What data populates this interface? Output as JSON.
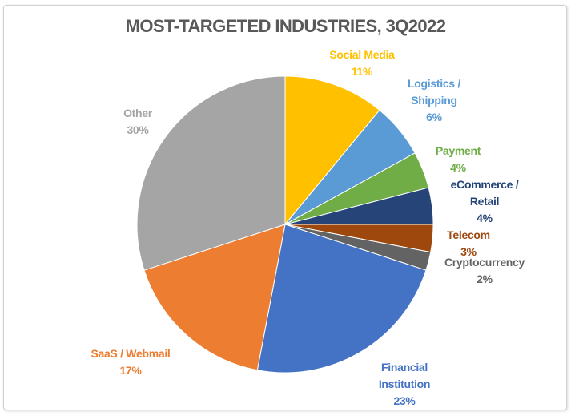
{
  "chart_data": {
    "type": "pie",
    "title": "MOST-TARGETED INDUSTRIES, 3Q2022",
    "start": "top, clockwise",
    "slices": [
      {
        "name": "Social Media",
        "value": 11,
        "label": "11%",
        "color": "#FFC000"
      },
      {
        "name": "Logistics / Shipping",
        "value": 6,
        "label": "6%",
        "color": "#5B9BD5"
      },
      {
        "name": "Payment",
        "value": 4,
        "label": "4%",
        "color": "#70AD47"
      },
      {
        "name": "eCommerce / Retail",
        "value": 4,
        "label": "4%",
        "color": "#264478"
      },
      {
        "name": "Telecom",
        "value": 3,
        "label": "3%",
        "color": "#9E480E"
      },
      {
        "name": "Cryptocurrency",
        "value": 2,
        "label": "2%",
        "color": "#636363"
      },
      {
        "name": "Financial Institution",
        "value": 23,
        "label": "23%",
        "color": "#4472C4"
      },
      {
        "name": "SaaS / Webmail",
        "value": 17,
        "label": "17%",
        "color": "#ED7D31"
      },
      {
        "name": "Other",
        "value": 30,
        "label": "30%",
        "color": "#A5A5A5"
      }
    ]
  }
}
